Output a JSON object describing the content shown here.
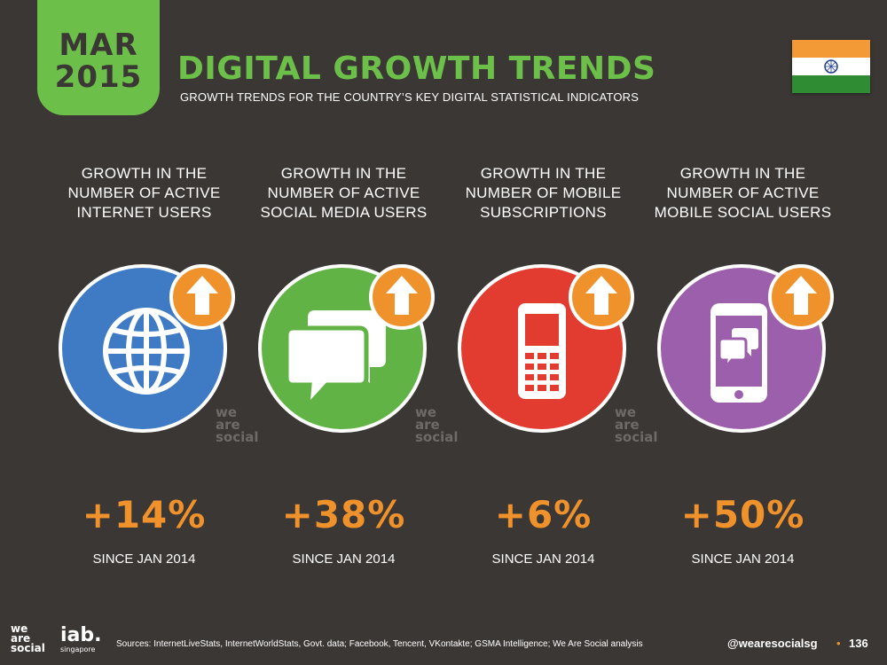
{
  "date_badge": {
    "month": "MAR",
    "year": "2015"
  },
  "header": {
    "title": "DIGITAL GROWTH TRENDS",
    "subtitle": "GROWTH TRENDS FOR THE COUNTRY’S KEY DIGITAL STATISTICAL INDICATORS"
  },
  "flag_icon": "india-flag-icon",
  "colors": {
    "background": "#3b3735",
    "accent_green": "#6cc04a",
    "accent_orange": "#f0922c",
    "internet_blue": "#3f7bc4",
    "social_green": "#61b346",
    "mobile_red": "#e23b2f",
    "mobile_social_purple": "#9b5fab"
  },
  "stats": [
    {
      "label_lines": [
        "GROWTH IN THE",
        "NUMBER OF ACTIVE",
        "INTERNET USERS"
      ],
      "value": "+14%",
      "since": "SINCE JAN 2014",
      "icon": "globe-icon"
    },
    {
      "label_lines": [
        "GROWTH IN THE",
        "NUMBER OF ACTIVE",
        "SOCIAL MEDIA USERS"
      ],
      "value": "+38%",
      "since": "SINCE JAN 2014",
      "icon": "chat-bubbles-icon"
    },
    {
      "label_lines": [
        "GROWTH IN THE",
        "NUMBER OF MOBILE",
        "SUBSCRIPTIONS"
      ],
      "value": "+6%",
      "since": "SINCE JAN 2014",
      "icon": "mobile-phone-icon"
    },
    {
      "label_lines": [
        "GROWTH IN THE",
        "NUMBER OF ACTIVE",
        "MOBILE SOCIAL USERS"
      ],
      "value": "+50%",
      "since": "SINCE JAN 2014",
      "icon": "smartphone-chat-icon"
    }
  ],
  "watermark_lines": [
    "we",
    "are",
    "social"
  ],
  "footer": {
    "logo_lines": [
      "we",
      "are",
      "social"
    ],
    "iab_main": "iab.",
    "iab_sub": "singapore",
    "sources": "Sources: InternetLiveStats, InternetWorldStats, Govt. data; Facebook, Tencent, VKontakte; GSMA Intelligence; We Are Social analysis",
    "handle": "@wearesocialsg",
    "bullet": "•",
    "page": "136"
  }
}
